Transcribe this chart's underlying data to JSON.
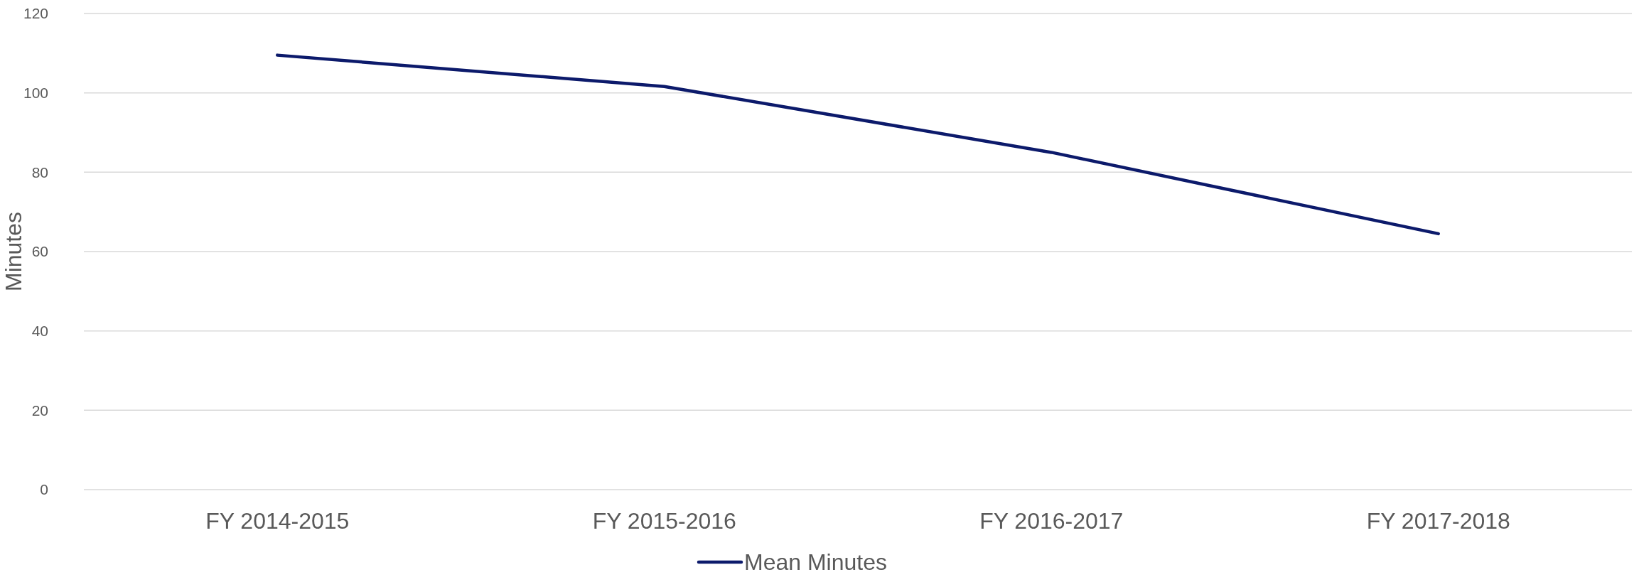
{
  "chart_data": {
    "type": "line",
    "ylabel": "Minutes",
    "categories": [
      "FY 2014-2015",
      "FY 2015-2016",
      "FY 2016-2017",
      "FY 2017-2018"
    ],
    "series": [
      {
        "name": "Mean Minutes",
        "color": "#0c1a6b",
        "values": [
          109.5,
          101.6,
          85,
          64.5
        ]
      }
    ],
    "ylim": [
      0,
      120
    ],
    "yticks": [
      0,
      20,
      40,
      60,
      80,
      100,
      120
    ],
    "grid": "y",
    "legend": "bottom",
    "marker": "none",
    "line_style": "solid"
  }
}
